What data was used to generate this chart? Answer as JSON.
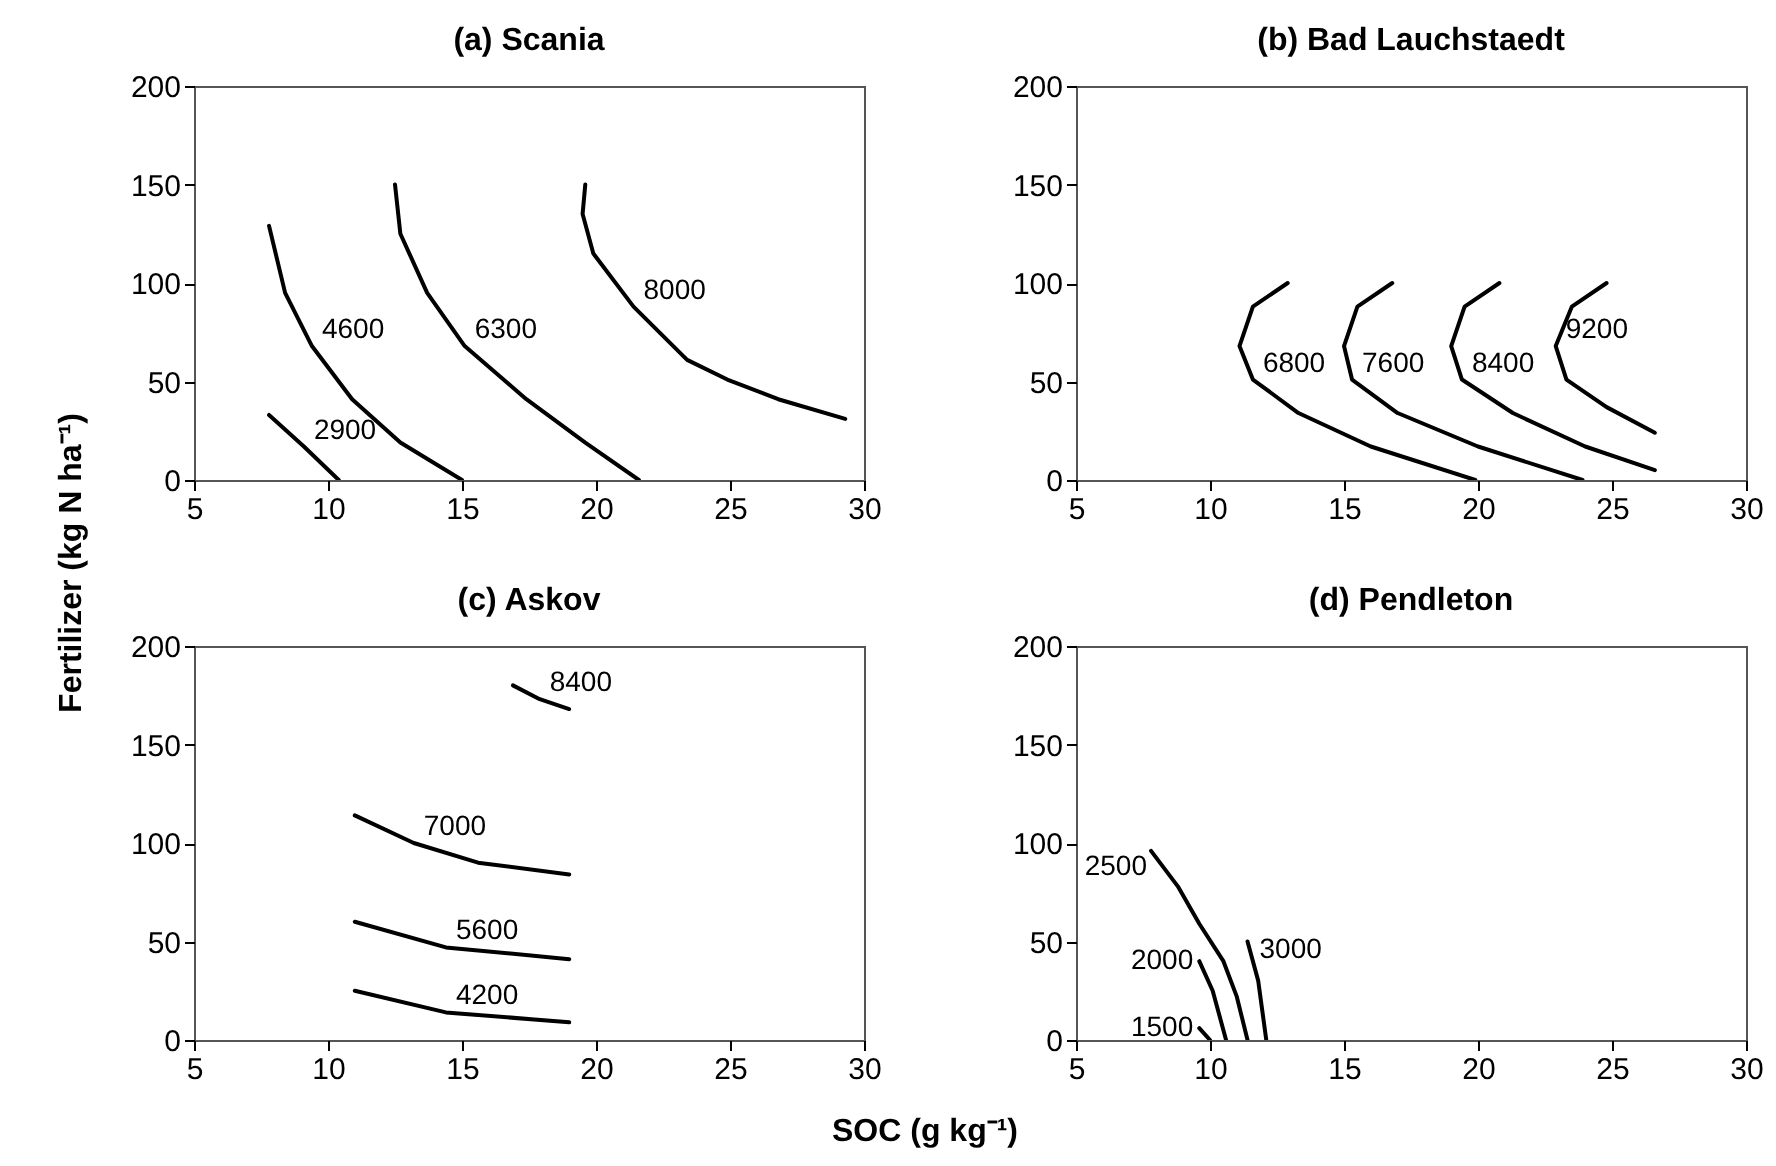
{
  "chart_data": [
    {
      "type": "line",
      "title": "(a) Scania",
      "ylabel": "Fertilizer (kg N ha⁻¹)",
      "xlim": [
        5,
        30
      ],
      "xticks": [
        5,
        10,
        15,
        20,
        25,
        30
      ],
      "ylim": [
        0,
        200
      ],
      "yticks": [
        0,
        50,
        100,
        150,
        200
      ],
      "series": [
        {
          "name": "2900",
          "color": "#000000",
          "x": [
            7.8,
            9.1,
            10.4
          ],
          "values": [
            33,
            17,
            0
          ]
        },
        {
          "name": "4600",
          "color": "#000000",
          "x": [
            7.8,
            8.4,
            9.4,
            10.9,
            12.7,
            15
          ],
          "values": [
            129,
            95,
            68,
            41,
            19,
            0
          ]
        },
        {
          "name": "6300",
          "color": "#000000",
          "x": [
            12.5,
            12.7,
            13.7,
            15.1,
            17.4,
            19.6,
            21.6
          ],
          "values": [
            150,
            125,
            95,
            68,
            41,
            19,
            0
          ]
        },
        {
          "name": "8000",
          "color": "#000000",
          "x": [
            19.6,
            19.5,
            19.9,
            21.4,
            23.4,
            24.9,
            26.8,
            29.3
          ],
          "values": [
            150,
            135,
            115,
            88,
            61,
            51,
            41,
            31
          ]
        }
      ]
    },
    {
      "type": "line",
      "title": "(b) Bad Lauchstaedt",
      "xlim": [
        5,
        30
      ],
      "xticks": [
        5,
        10,
        15,
        20,
        25,
        30
      ],
      "ylim": [
        0,
        200
      ],
      "yticks": [
        0,
        50,
        100,
        150,
        200
      ],
      "series": [
        {
          "name": "6800",
          "color": "#000000",
          "x": [
            12.9,
            11.6,
            11.1,
            11.6,
            13.3,
            16.0,
            19.9
          ],
          "values": [
            100,
            88,
            68,
            51,
            34,
            17,
            0
          ]
        },
        {
          "name": "7600",
          "color": "#000000",
          "x": [
            16.8,
            15.5,
            15.0,
            15.3,
            17.0,
            20.0,
            23.9
          ],
          "values": [
            100,
            88,
            68,
            51,
            34,
            17,
            0
          ]
        },
        {
          "name": "8400",
          "color": "#000000",
          "x": [
            20.8,
            19.5,
            19.0,
            19.4,
            21.3,
            24.0,
            26.6
          ],
          "values": [
            100,
            88,
            68,
            51,
            34,
            17,
            5
          ]
        },
        {
          "name": "9200",
          "color": "#000000",
          "x": [
            24.8,
            23.5,
            22.9,
            23.3,
            24.8,
            26.6
          ],
          "values": [
            100,
            88,
            68,
            51,
            37,
            24
          ]
        }
      ]
    },
    {
      "type": "line",
      "title": "(c) Askov",
      "xlabel": "SOC (g kg⁻¹)",
      "xlim": [
        5,
        30
      ],
      "xticks": [
        5,
        10,
        15,
        20,
        25,
        30
      ],
      "ylim": [
        0,
        200
      ],
      "yticks": [
        0,
        50,
        100,
        150,
        200
      ],
      "series": [
        {
          "name": "8400",
          "color": "#000000",
          "x": [
            16.9,
            17.9,
            19.0
          ],
          "values": [
            180,
            173,
            168
          ]
        },
        {
          "name": "7000",
          "color": "#000000",
          "x": [
            11.0,
            13.2,
            15.6,
            19.0
          ],
          "values": [
            114,
            100,
            90,
            84
          ]
        },
        {
          "name": "5600",
          "color": "#000000",
          "x": [
            11.0,
            14.4,
            19.0
          ],
          "values": [
            60,
            47,
            41
          ]
        },
        {
          "name": "4200",
          "color": "#000000",
          "x": [
            11.0,
            14.4,
            19.0
          ],
          "values": [
            25,
            14,
            9
          ]
        }
      ]
    },
    {
      "type": "line",
      "title": "(d) Pendleton",
      "xlim": [
        5,
        30
      ],
      "xticks": [
        5,
        10,
        15,
        20,
        25,
        30
      ],
      "ylim": [
        0,
        200
      ],
      "yticks": [
        0,
        50,
        100,
        150,
        200
      ],
      "series": [
        {
          "name": "1500",
          "color": "#000000",
          "x": [
            9.6,
            10.0
          ],
          "values": [
            6,
            0
          ]
        },
        {
          "name": "2000",
          "color": "#000000",
          "x": [
            9.6,
            10.1,
            10.6
          ],
          "values": [
            40,
            25,
            0
          ]
        },
        {
          "name": "2500",
          "color": "#000000",
          "x": [
            7.8,
            8.8,
            9.6,
            10.5,
            11.0,
            11.4
          ],
          "values": [
            96,
            78,
            59,
            40,
            22,
            0
          ]
        },
        {
          "name": "3000",
          "color": "#000000",
          "x": [
            11.4,
            11.8,
            12.1
          ],
          "values": [
            50,
            30,
            0
          ]
        }
      ]
    }
  ]
}
